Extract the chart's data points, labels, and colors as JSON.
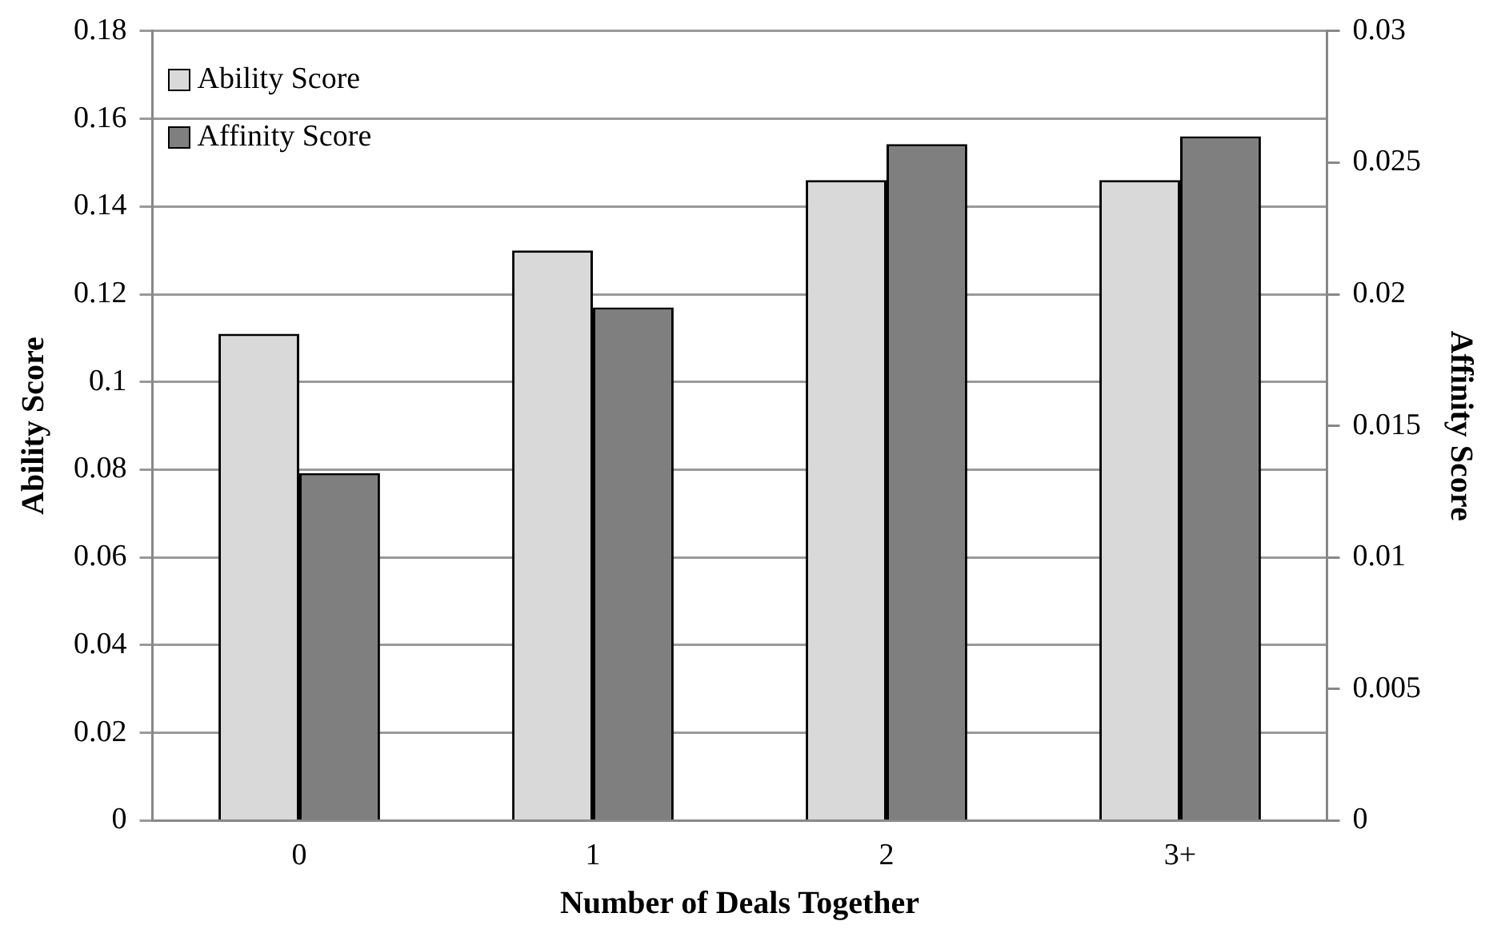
{
  "chart_data": {
    "type": "bar",
    "xlabel": "Number of Deals Together",
    "ylabel": "Ability Score",
    "y2label": "Affinity Score",
    "categories": [
      "0",
      "1",
      "2",
      "3+"
    ],
    "series": [
      {
        "name": "Ability Score",
        "color": "#d9d9d9",
        "values": [
          0.111,
          0.13,
          0.146,
          0.146
        ]
      },
      {
        "name": "Affinity Score",
        "color": "#7f7f7f",
        "axis": "y2",
        "values": [
          0.0132,
          0.0195,
          0.0257,
          0.026
        ]
      }
    ],
    "ylim": [
      0,
      0.18
    ],
    "yticks": [
      0,
      0.02,
      0.04,
      0.06,
      0.08,
      0.1,
      0.12,
      0.14,
      0.16,
      0.18
    ],
    "y2lim": [
      0,
      0.03
    ],
    "y2ticks": [
      0,
      0.005,
      0.01,
      0.015,
      0.02,
      0.025,
      0.03
    ],
    "grid": "y",
    "legend": "top left"
  }
}
